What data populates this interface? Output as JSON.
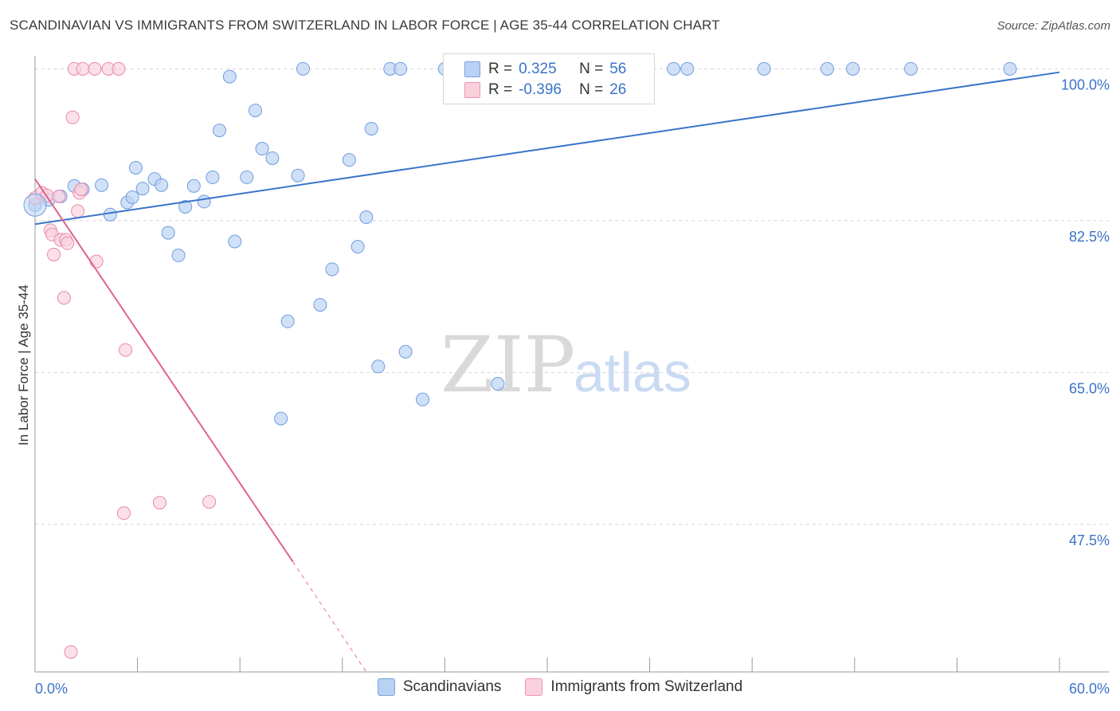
{
  "title": "SCANDINAVIAN VS IMMIGRANTS FROM SWITZERLAND IN LABOR FORCE | AGE 35-44 CORRELATION CHART",
  "source": "Source: ZipAtlas.com",
  "watermark": {
    "zip": "ZIP",
    "atlas": "atlas"
  },
  "legend": {
    "rows": [
      {
        "r_label": "R =",
        "r_value": "0.325",
        "n_label": "N =",
        "n_value": "56",
        "color": "#a9c5ee",
        "border": "#6f9de0"
      },
      {
        "r_label": "R =",
        "r_value": "-0.396",
        "n_label": "N =",
        "n_value": "26",
        "color": "#f8c0d1",
        "border": "#e88aa8"
      }
    ]
  },
  "bottom_legend": {
    "items": [
      {
        "label": "Scandinavians",
        "color": "#b9d1f3",
        "border": "#7aa3e0"
      },
      {
        "label": "Immigrants from Switzerland",
        "color": "#fbd0dd",
        "border": "#eb94b0"
      }
    ]
  },
  "chart_data": {
    "type": "scatter",
    "ylabel": "In Labor Force | Age 35-44",
    "x_tick_labels": [
      "0.0%",
      "60.0%"
    ],
    "y_tick_labels": [
      "100.0%",
      "82.5%",
      "65.0%",
      "47.5%"
    ],
    "xlim": [
      0,
      60
    ],
    "ylim": [
      30.5,
      101.5
    ],
    "grid": true,
    "y_gridlines": [
      100,
      82.5,
      65,
      47.5
    ],
    "series": [
      {
        "name": "Scandinavians",
        "color": "#6f9de0",
        "fill": "#bcd3f3",
        "trend": {
          "x": [
            0,
            60
          ],
          "y": [
            82.1,
            99.6
          ]
        },
        "points": [
          [
            0.0,
            84.3
          ],
          [
            0.8,
            84.9
          ],
          [
            1.5,
            85.3
          ],
          [
            2.3,
            86.5
          ],
          [
            2.8,
            86.1
          ],
          [
            3.9,
            86.6
          ],
          [
            4.4,
            83.2
          ],
          [
            5.4,
            84.6
          ],
          [
            5.7,
            85.2
          ],
          [
            5.9,
            88.6
          ],
          [
            6.3,
            86.2
          ],
          [
            7.0,
            87.3
          ],
          [
            7.4,
            86.6
          ],
          [
            7.8,
            81.1
          ],
          [
            8.4,
            78.5
          ],
          [
            8.8,
            84.1
          ],
          [
            9.3,
            86.5
          ],
          [
            9.9,
            84.7
          ],
          [
            10.4,
            87.5
          ],
          [
            10.8,
            92.9
          ],
          [
            11.4,
            99.1
          ],
          [
            11.7,
            80.1
          ],
          [
            12.4,
            87.5
          ],
          [
            12.9,
            95.2
          ],
          [
            13.3,
            90.8
          ],
          [
            13.9,
            89.7
          ],
          [
            14.4,
            59.7
          ],
          [
            14.8,
            70.9
          ],
          [
            15.4,
            87.7
          ],
          [
            15.7,
            100.0
          ],
          [
            16.7,
            72.8
          ],
          [
            17.4,
            76.9
          ],
          [
            18.4,
            89.5
          ],
          [
            18.9,
            79.5
          ],
          [
            19.4,
            82.9
          ],
          [
            19.7,
            93.1
          ],
          [
            20.1,
            65.7
          ],
          [
            20.8,
            100.0
          ],
          [
            21.4,
            100.0
          ],
          [
            21.7,
            67.4
          ],
          [
            22.7,
            61.9
          ],
          [
            24.0,
            100.0
          ],
          [
            24.7,
            98.0
          ],
          [
            25.4,
            100.0
          ],
          [
            27.1,
            63.7
          ],
          [
            27.3,
            100.0
          ],
          [
            29.2,
            100.0
          ],
          [
            30.9,
            100.0
          ],
          [
            33.7,
            100.0
          ],
          [
            37.4,
            100.0
          ],
          [
            38.2,
            100.0
          ],
          [
            42.7,
            100.0
          ],
          [
            46.4,
            100.0
          ],
          [
            47.9,
            100.0
          ],
          [
            51.3,
            100.0
          ],
          [
            57.1,
            100.0
          ]
        ]
      },
      {
        "name": "Immigrants from Switzerland",
        "color": "#e88aa8",
        "fill": "#fbd3df",
        "trend": {
          "x": [
            0,
            15.1
          ],
          "y": [
            87.3,
            43.2
          ],
          "dash_x": [
            15.1,
            19.4
          ],
          "dash_y": [
            43.2,
            30.5
          ]
        },
        "points": [
          [
            0.0,
            85.1
          ],
          [
            0.4,
            85.7
          ],
          [
            0.7,
            85.4
          ],
          [
            0.9,
            81.4
          ],
          [
            1.0,
            80.9
          ],
          [
            1.1,
            78.6
          ],
          [
            1.4,
            85.3
          ],
          [
            1.5,
            80.3
          ],
          [
            1.7,
            73.6
          ],
          [
            1.8,
            80.3
          ],
          [
            1.9,
            79.9
          ],
          [
            2.1,
            32.8
          ],
          [
            2.2,
            94.4
          ],
          [
            2.3,
            100.0
          ],
          [
            2.5,
            83.6
          ],
          [
            2.6,
            85.7
          ],
          [
            2.7,
            86.1
          ],
          [
            2.8,
            100.0
          ],
          [
            3.5,
            100.0
          ],
          [
            3.6,
            77.8
          ],
          [
            4.3,
            100.0
          ],
          [
            4.9,
            100.0
          ],
          [
            5.2,
            48.8
          ],
          [
            5.3,
            67.6
          ],
          [
            7.3,
            50.0
          ],
          [
            10.2,
            50.1
          ]
        ]
      }
    ]
  }
}
